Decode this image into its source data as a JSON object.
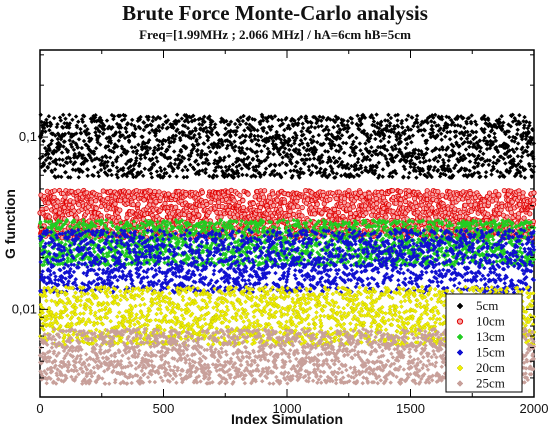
{
  "chart_data": {
    "type": "scatter",
    "title": "Brute Force Monte-Carlo analysis",
    "subtitle": "Freq=[1.99MHz ; 2.066 MHz] / hA=6cm  hB=5cm",
    "xlabel": "Index Simulation",
    "ylabel": "G function",
    "x_scale": "linear",
    "y_scale": "log",
    "xlim": [
      0,
      2000
    ],
    "ylim": [
      0.0031,
      0.32
    ],
    "x_ticks": [
      0,
      500,
      1000,
      1500,
      2000
    ],
    "x_tick_labels": [
      "0",
      "500",
      "1000",
      "1500",
      "2000"
    ],
    "y_ticks": [
      0.1,
      0.01
    ],
    "y_tick_labels": [
      "0,1",
      "0,01"
    ],
    "grid": false,
    "legend_position": "bottom-right",
    "points_per_series": 2000,
    "series": [
      {
        "name": "5cm",
        "color": "#000000",
        "marker": "diamond",
        "y_range": [
          0.058,
          0.135
        ]
      },
      {
        "name": "10cm",
        "color": "#e00000",
        "marker": "circle",
        "y_range": [
          0.026,
          0.049
        ]
      },
      {
        "name": "13cm",
        "color": "#22cc22",
        "marker": "diamond",
        "y_range": [
          0.018,
          0.033
        ]
      },
      {
        "name": "15cm",
        "color": "#1010d0",
        "marker": "diamond",
        "y_range": [
          0.0125,
          0.029
        ]
      },
      {
        "name": "20cm",
        "color": "#f0f000",
        "marker": "diamond",
        "y_range": [
          0.0062,
          0.0135
        ]
      },
      {
        "name": "25cm",
        "color": "#c8a09a",
        "marker": "diamond",
        "y_range": [
          0.0037,
          0.0077
        ]
      }
    ]
  }
}
